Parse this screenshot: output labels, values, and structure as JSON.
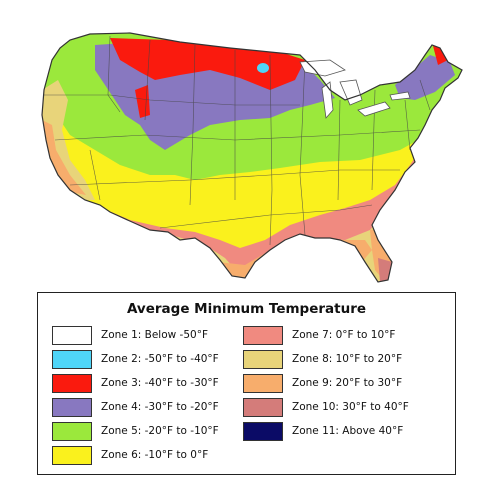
{
  "map": {
    "zones_depicted": [
      "Zone 2",
      "Zone 3",
      "Zone 4",
      "Zone 5",
      "Zone 6",
      "Zone 7",
      "Zone 8",
      "Zone 9",
      "Zone 10"
    ]
  },
  "legend": {
    "title": "Average Minimum Temperature",
    "zones": [
      {
        "label": "Zone 1: Below -50°F",
        "color": "#ffffff"
      },
      {
        "label": "Zone 2: -50°F to -40°F",
        "color": "#4fd5f8"
      },
      {
        "label": "Zone 3: -40°F to -30°F",
        "color": "#fa1a0e"
      },
      {
        "label": "Zone 4: -30°F to -20°F",
        "color": "#8878c0"
      },
      {
        "label": "Zone 5: -20°F to -10°F",
        "color": "#9be83c"
      },
      {
        "label": "Zone 6: -10°F to 0°F",
        "color": "#faf11d"
      },
      {
        "label": "Zone 7: 0°F to 10°F",
        "color": "#f08a80"
      },
      {
        "label": "Zone 8: 10°F to 20°F",
        "color": "#e8d47a"
      },
      {
        "label": "Zone 9: 20°F to 30°F",
        "color": "#f7ad6c"
      },
      {
        "label": "Zone 10: 30°F to 40°F",
        "color": "#d47c7a"
      },
      {
        "label": "Zone 11: Above 40°F",
        "color": "#0b0b66"
      }
    ]
  }
}
